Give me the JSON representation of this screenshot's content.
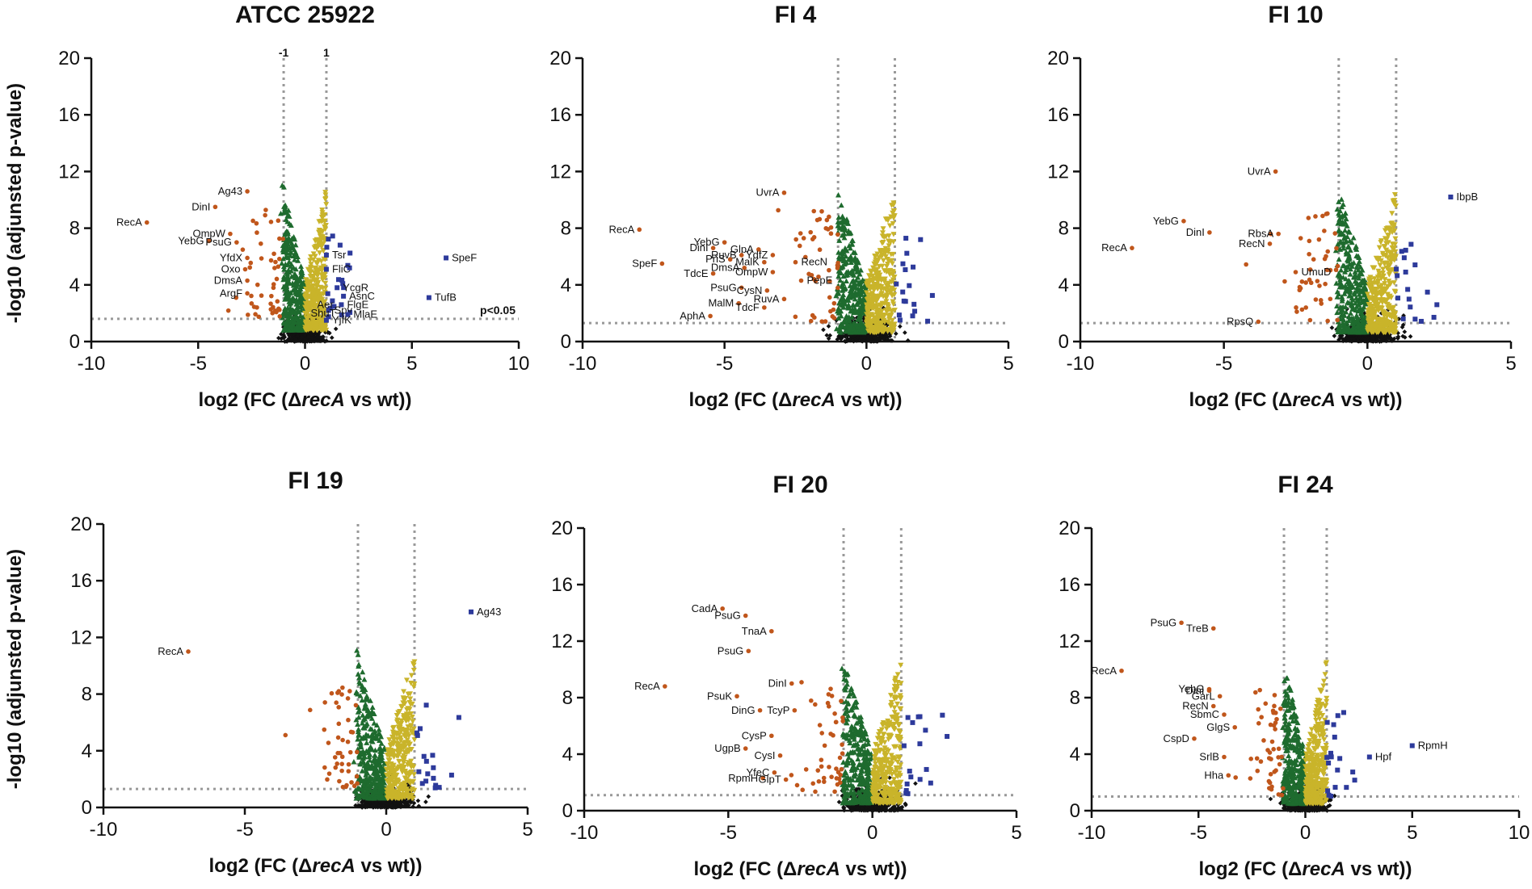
{
  "figure": {
    "ylabel": "-log10 (adjunsted p-value)",
    "xlabel_prefix": "log2 (FC (",
    "xlabel_delta": "Δ",
    "xlabel_gene": "recA",
    "xlabel_suffix": " vs wt))"
  },
  "colors": {
    "down_strong": "#c0561b",
    "down": "#1e6b2e",
    "up": "#c9b42a",
    "up_strong": "#2d3a9b",
    "ns": "#111111",
    "threshold": "#999999"
  },
  "chart_data": [
    {
      "type": "scatter",
      "title": "ATCC 25922",
      "xlim": [
        -10,
        10
      ],
      "ylim": [
        0,
        20
      ],
      "xticks": [
        -10,
        -5,
        0,
        5,
        10
      ],
      "yticks": [
        0,
        4,
        8,
        12,
        16,
        20
      ],
      "vlines": [
        -1,
        1
      ],
      "hline": 1.6,
      "vline_labels": [
        "-1",
        "1"
      ],
      "p_label": "p<0.05",
      "labels": [
        {
          "x": -7.4,
          "y": 8.4,
          "text": "RecA",
          "cls": "down_strong"
        },
        {
          "x": -4.2,
          "y": 9.5,
          "text": "DinI",
          "cls": "down_strong"
        },
        {
          "x": -2.7,
          "y": 10.6,
          "text": "Ag43",
          "cls": "down_strong"
        },
        {
          "x": -3.5,
          "y": 7.6,
          "text": "OmpW",
          "cls": "down_strong"
        },
        {
          "x": -4.5,
          "y": 7.1,
          "text": "YebG",
          "cls": "down_strong"
        },
        {
          "x": -3.2,
          "y": 7.0,
          "text": "PsuG",
          "cls": "down_strong"
        },
        {
          "x": -2.7,
          "y": 5.9,
          "text": "YfdX",
          "cls": "down_strong"
        },
        {
          "x": -2.8,
          "y": 5.1,
          "text": "Oxo",
          "cls": "down_strong"
        },
        {
          "x": -2.7,
          "y": 4.3,
          "text": "DmsA",
          "cls": "down_strong"
        },
        {
          "x": -2.7,
          "y": 3.4,
          "text": "ArgF",
          "cls": "down_strong"
        },
        {
          "x": 1.0,
          "y": 6.1,
          "text": "Tsr",
          "cls": "up_strong"
        },
        {
          "x": 1.0,
          "y": 5.1,
          "text": "FliC",
          "cls": "up_strong"
        },
        {
          "x": 1.5,
          "y": 3.8,
          "text": "YcgR",
          "cls": "up_strong"
        },
        {
          "x": 1.8,
          "y": 3.2,
          "text": "AsnC",
          "cls": "up_strong"
        },
        {
          "x": 1.7,
          "y": 2.6,
          "text": "FlgE",
          "cls": "up_strong"
        },
        {
          "x": 0.3,
          "y": 2.6,
          "text": "Aer",
          "cls": "up"
        },
        {
          "x": 1.1,
          "y": 2.2,
          "text": "Spy",
          "cls": "up_strong"
        },
        {
          "x": 0.0,
          "y": 2.0,
          "text": "ShuT",
          "cls": "up"
        },
        {
          "x": 2.0,
          "y": 1.9,
          "text": "MlaE",
          "cls": "up_strong"
        },
        {
          "x": 1.0,
          "y": 1.5,
          "text": "YjfK",
          "cls": "up_strong"
        },
        {
          "x": 6.6,
          "y": 5.9,
          "text": "SpeF",
          "cls": "up_strong"
        },
        {
          "x": 5.8,
          "y": 3.1,
          "text": "TufB",
          "cls": "up_strong"
        }
      ]
    },
    {
      "type": "scatter",
      "title": "FI 4",
      "xlim": [
        -10,
        5
      ],
      "ylim": [
        0,
        20
      ],
      "xticks": [
        -10,
        -5,
        0,
        5
      ],
      "yticks": [
        0,
        4,
        8,
        12,
        16,
        20
      ],
      "vlines": [
        -1,
        1
      ],
      "hline": 1.3,
      "labels": [
        {
          "x": -8.0,
          "y": 7.9,
          "text": "RecA",
          "cls": "down_strong"
        },
        {
          "x": -2.9,
          "y": 10.5,
          "text": "UvrA",
          "cls": "down_strong"
        },
        {
          "x": -5.0,
          "y": 7.0,
          "text": "YebG",
          "cls": "down_strong"
        },
        {
          "x": -5.4,
          "y": 6.6,
          "text": "DinI",
          "cls": "down_strong"
        },
        {
          "x": -3.8,
          "y": 6.5,
          "text": "GlpA",
          "cls": "down_strong"
        },
        {
          "x": -4.4,
          "y": 6.1,
          "text": "RuvB",
          "cls": "down_strong"
        },
        {
          "x": -3.3,
          "y": 6.1,
          "text": "YdfZ",
          "cls": "down_strong"
        },
        {
          "x": -4.8,
          "y": 5.8,
          "text": "PriS",
          "cls": "down_strong"
        },
        {
          "x": -3.6,
          "y": 5.6,
          "text": "MalK",
          "cls": "down_strong"
        },
        {
          "x": -2.5,
          "y": 5.6,
          "text": "RecN",
          "cls": "down_strong"
        },
        {
          "x": -4.3,
          "y": 5.2,
          "text": "DmsA",
          "cls": "down_strong"
        },
        {
          "x": -3.3,
          "y": 4.9,
          "text": "OmpW",
          "cls": "down_strong"
        },
        {
          "x": -7.2,
          "y": 5.5,
          "text": "SpeF",
          "cls": "down_strong"
        },
        {
          "x": -5.4,
          "y": 4.8,
          "text": "TdcE",
          "cls": "down_strong"
        },
        {
          "x": -2.3,
          "y": 4.3,
          "text": "PepE",
          "cls": "down_strong"
        },
        {
          "x": -4.4,
          "y": 3.8,
          "text": "PsuG",
          "cls": "down_strong"
        },
        {
          "x": -3.5,
          "y": 3.6,
          "text": "CysN",
          "cls": "down_strong"
        },
        {
          "x": -2.9,
          "y": 3.0,
          "text": "RuvA",
          "cls": "down_strong"
        },
        {
          "x": -4.5,
          "y": 2.7,
          "text": "MalM",
          "cls": "down_strong"
        },
        {
          "x": -3.6,
          "y": 2.4,
          "text": "TdcF",
          "cls": "down_strong"
        },
        {
          "x": -5.5,
          "y": 1.8,
          "text": "AphA",
          "cls": "down_strong"
        }
      ]
    },
    {
      "type": "scatter",
      "title": "FI 10",
      "xlim": [
        -10,
        5
      ],
      "ylim": [
        0,
        20
      ],
      "xticks": [
        -10,
        -5,
        0,
        5
      ],
      "yticks": [
        0,
        4,
        8,
        12,
        16,
        20
      ],
      "vlines": [
        -1,
        1
      ],
      "hline": 1.3,
      "labels": [
        {
          "x": -3.2,
          "y": 12.0,
          "text": "UvrA",
          "cls": "down_strong"
        },
        {
          "x": -6.4,
          "y": 8.5,
          "text": "YebG",
          "cls": "down_strong"
        },
        {
          "x": -5.5,
          "y": 7.7,
          "text": "DinI",
          "cls": "down_strong"
        },
        {
          "x": -3.1,
          "y": 7.6,
          "text": "RbsA",
          "cls": "down_strong"
        },
        {
          "x": -3.4,
          "y": 6.9,
          "text": "RecN",
          "cls": "down_strong"
        },
        {
          "x": -8.2,
          "y": 6.6,
          "text": "RecA",
          "cls": "down_strong"
        },
        {
          "x": -2.5,
          "y": 4.9,
          "text": "UmuD",
          "cls": "down_strong"
        },
        {
          "x": -3.8,
          "y": 1.4,
          "text": "RpsQ",
          "cls": "down_strong"
        },
        {
          "x": 2.9,
          "y": 10.2,
          "text": "IbpB",
          "cls": "up_strong"
        }
      ]
    },
    {
      "type": "scatter",
      "title": "FI 19",
      "xlim": [
        -10,
        5
      ],
      "ylim": [
        0,
        20
      ],
      "xticks": [
        -10,
        -5,
        0,
        5
      ],
      "yticks": [
        0,
        4,
        8,
        12,
        16,
        20
      ],
      "vlines": [
        -1,
        1
      ],
      "hline": 1.3,
      "labels": [
        {
          "x": -7.0,
          "y": 11.0,
          "text": "RecA",
          "cls": "down_strong"
        },
        {
          "x": 3.0,
          "y": 13.8,
          "text": "Ag43",
          "cls": "up_strong"
        }
      ]
    },
    {
      "type": "scatter",
      "title": "FI 20",
      "xlim": [
        -10,
        5
      ],
      "ylim": [
        0,
        20
      ],
      "xticks": [
        -10,
        -5,
        0,
        5
      ],
      "yticks": [
        0,
        4,
        8,
        12,
        16,
        20
      ],
      "vlines": [
        -1,
        1
      ],
      "hline": 1.1,
      "labels": [
        {
          "x": -5.2,
          "y": 14.3,
          "text": "CadA",
          "cls": "down_strong"
        },
        {
          "x": -4.4,
          "y": 13.8,
          "text": "PsuG",
          "cls": "down_strong"
        },
        {
          "x": -3.5,
          "y": 12.7,
          "text": "TnaA",
          "cls": "down_strong"
        },
        {
          "x": -4.3,
          "y": 11.3,
          "text": "PsuG",
          "cls": "down_strong"
        },
        {
          "x": -7.2,
          "y": 8.8,
          "text": "RecA",
          "cls": "down_strong"
        },
        {
          "x": -2.8,
          "y": 9.0,
          "text": "DinI",
          "cls": "down_strong"
        },
        {
          "x": -4.7,
          "y": 8.1,
          "text": "PsuK",
          "cls": "down_strong"
        },
        {
          "x": -3.9,
          "y": 7.1,
          "text": "DinG",
          "cls": "down_strong"
        },
        {
          "x": -2.7,
          "y": 7.1,
          "text": "TcyP",
          "cls": "down_strong"
        },
        {
          "x": -3.5,
          "y": 5.3,
          "text": "CysP",
          "cls": "down_strong"
        },
        {
          "x": -4.4,
          "y": 4.4,
          "text": "UgpB",
          "cls": "down_strong"
        },
        {
          "x": -3.2,
          "y": 3.9,
          "text": "CysI",
          "cls": "down_strong"
        },
        {
          "x": -3.4,
          "y": 2.7,
          "text": "YfeC",
          "cls": "down_strong"
        },
        {
          "x": -3.8,
          "y": 2.3,
          "text": "RpmH",
          "cls": "down_strong"
        },
        {
          "x": -3.0,
          "y": 2.2,
          "text": "GlpT",
          "cls": "down_strong"
        }
      ]
    },
    {
      "type": "scatter",
      "title": "FI 24",
      "xlim": [
        -10,
        10
      ],
      "ylim": [
        0,
        20
      ],
      "xticks": [
        -10,
        -5,
        0,
        5,
        10
      ],
      "yticks": [
        0,
        4,
        8,
        12,
        16,
        20
      ],
      "vlines": [
        -1,
        1
      ],
      "hline": 1.0,
      "labels": [
        {
          "x": -8.6,
          "y": 9.9,
          "text": "RecA",
          "cls": "down_strong"
        },
        {
          "x": -5.8,
          "y": 13.3,
          "text": "PsuG",
          "cls": "down_strong"
        },
        {
          "x": -4.3,
          "y": 12.9,
          "text": "TreB",
          "cls": "down_strong"
        },
        {
          "x": -4.5,
          "y": 8.6,
          "text": "YebG",
          "cls": "down_strong"
        },
        {
          "x": -4.5,
          "y": 8.5,
          "text": "DinI",
          "cls": "down_strong"
        },
        {
          "x": -4.0,
          "y": 8.1,
          "text": "GarL",
          "cls": "down_strong"
        },
        {
          "x": -4.3,
          "y": 7.4,
          "text": "RecN",
          "cls": "down_strong"
        },
        {
          "x": -3.8,
          "y": 6.8,
          "text": "SbmC",
          "cls": "down_strong"
        },
        {
          "x": -3.3,
          "y": 5.9,
          "text": "GlgS",
          "cls": "down_strong"
        },
        {
          "x": -5.2,
          "y": 5.1,
          "text": "CspD",
          "cls": "down_strong"
        },
        {
          "x": -3.8,
          "y": 3.8,
          "text": "SrlB",
          "cls": "down_strong"
        },
        {
          "x": -3.6,
          "y": 2.5,
          "text": "Hha",
          "cls": "down_strong"
        },
        {
          "x": 3.0,
          "y": 3.8,
          "text": "Hpf",
          "cls": "up_strong"
        },
        {
          "x": 5.0,
          "y": 4.6,
          "text": "RpmH",
          "cls": "up_strong"
        }
      ]
    }
  ]
}
